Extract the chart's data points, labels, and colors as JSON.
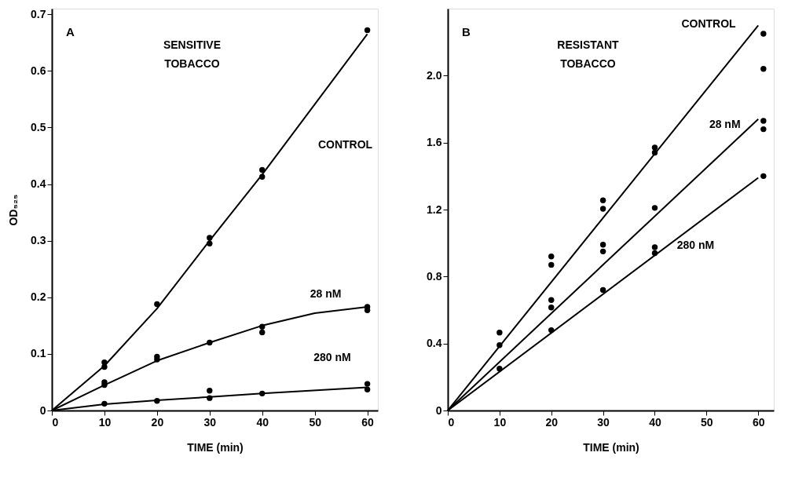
{
  "chart_data": [
    {
      "type": "line",
      "title": "A",
      "subtitle": "SENSITIVE\nTOBACCO",
      "xlabel": "TIME   (min)",
      "ylabel": "OD₅₂₅",
      "xlim": [
        0,
        62
      ],
      "xticks": [
        0,
        10,
        20,
        30,
        40,
        50,
        60
      ],
      "ylim": [
        0,
        0.71
      ],
      "yticks": [
        0,
        0.1,
        0.2,
        0.3,
        0.4,
        0.5,
        0.6,
        0.7
      ],
      "grid": false,
      "series": [
        {
          "name": "CONTROL",
          "type": "line",
          "marker": "none",
          "line_style": "solid",
          "color": "#000000",
          "x": [
            0,
            10,
            20,
            30,
            40,
            60
          ],
          "values": [
            0,
            0.079,
            0.18,
            0.3,
            0.417,
            0.665
          ]
        },
        {
          "type": "scatter",
          "marker": "circle",
          "color": "#000000",
          "x": [
            10,
            10,
            20,
            30,
            30,
            40,
            40,
            60
          ],
          "values": [
            0.085,
            0.077,
            0.188,
            0.305,
            0.295,
            0.425,
            0.413,
            0.672
          ]
        },
        {
          "name": "28 nM",
          "type": "line",
          "marker": "none",
          "line_style": "solid",
          "color": "#000000",
          "x": [
            0,
            10,
            20,
            30,
            40,
            50,
            60
          ],
          "values": [
            0,
            0.045,
            0.088,
            0.12,
            0.15,
            0.172,
            0.183
          ]
        },
        {
          "type": "scatter",
          "marker": "circle",
          "color": "#000000",
          "x": [
            10,
            10,
            20,
            20,
            30,
            40,
            40,
            60,
            60
          ],
          "values": [
            0.05,
            0.045,
            0.095,
            0.09,
            0.12,
            0.148,
            0.138,
            0.183,
            0.177
          ]
        },
        {
          "name": "280 nM",
          "type": "line",
          "marker": "none",
          "line_style": "solid",
          "color": "#000000",
          "x": [
            0,
            10,
            20,
            30,
            40,
            60
          ],
          "values": [
            0,
            0.011,
            0.018,
            0.024,
            0.03,
            0.041
          ]
        },
        {
          "type": "scatter",
          "marker": "circle",
          "color": "#000000",
          "x": [
            10,
            20,
            30,
            30,
            40,
            60,
            60
          ],
          "values": [
            0.012,
            0.017,
            0.035,
            0.022,
            0.03,
            0.047,
            0.037
          ]
        }
      ]
    },
    {
      "type": "line",
      "title": "B",
      "subtitle": "RESISTANT\nTOBACCO",
      "xlabel": "TIME  (min)",
      "xlim": [
        0,
        63
      ],
      "xticks": [
        0,
        10,
        20,
        30,
        40,
        50,
        60
      ],
      "ylim": [
        0,
        2.4
      ],
      "yticks": [
        0,
        0.4,
        0.8,
        1.2,
        1.6,
        {
          "value": 2,
          "label": "2.0"
        }
      ],
      "grid": false,
      "series": [
        {
          "name": "CONTROL",
          "type": "line",
          "marker": "none",
          "line_style": "solid",
          "color": "#000000",
          "x": [
            0,
            60
          ],
          "values": [
            0,
            2.3
          ]
        },
        {
          "type": "scatter",
          "marker": "circle",
          "color": "#000000",
          "x": [
            10,
            10,
            20,
            20,
            30,
            30,
            40,
            40,
            61,
            61
          ],
          "values": [
            0.465,
            0.39,
            0.92,
            0.87,
            1.255,
            1.205,
            1.57,
            1.54,
            2.25,
            2.04
          ]
        },
        {
          "name": "28 nM",
          "type": "line",
          "marker": "none",
          "line_style": "solid",
          "color": "#000000",
          "x": [
            0,
            60
          ],
          "values": [
            0,
            1.74
          ]
        },
        {
          "type": "scatter",
          "marker": "circle",
          "color": "#000000",
          "x": [
            20,
            20,
            30,
            30,
            40,
            61,
            61
          ],
          "values": [
            0.66,
            0.615,
            0.99,
            0.95,
            1.21,
            1.73,
            1.68
          ]
        },
        {
          "name": "280 nM",
          "type": "line",
          "marker": "none",
          "line_style": "solid",
          "color": "#000000",
          "x": [
            0,
            60
          ],
          "values": [
            0,
            1.39
          ]
        },
        {
          "type": "scatter",
          "marker": "circle",
          "color": "#000000",
          "x": [
            10,
            20,
            30,
            40,
            40,
            61
          ],
          "values": [
            0.25,
            0.48,
            0.72,
            0.975,
            0.94,
            1.4
          ]
        }
      ]
    }
  ]
}
